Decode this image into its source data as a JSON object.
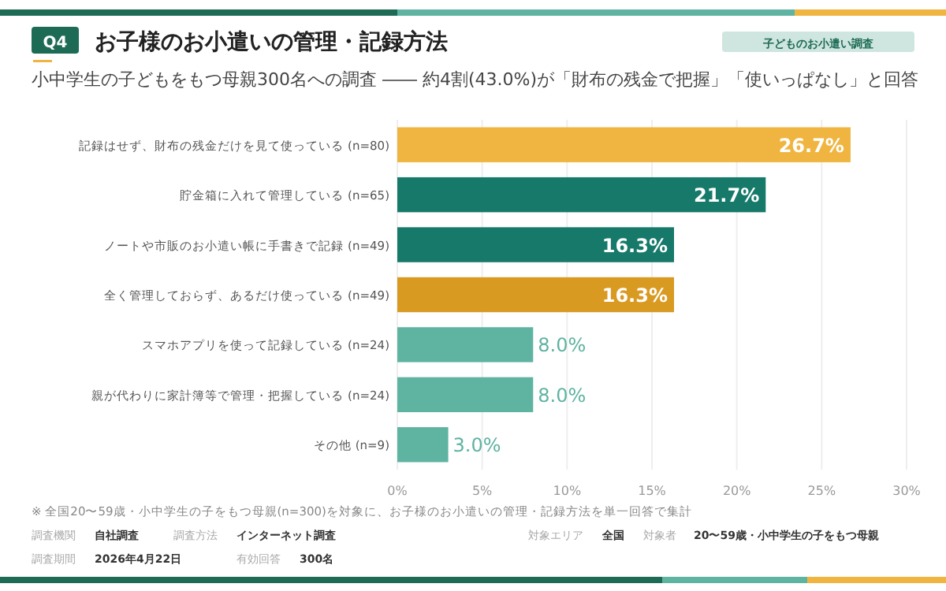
{
  "chart_data": {
    "type": "bar",
    "orientation": "horizontal",
    "title": "お子様のお小遣いの管理・記録方法",
    "subtitle": "小中学生の子どもをもつ母親300名への調査 ―― 約4割(43.0%)が「財布の残金で把握」「使いっぱなし」と回答",
    "categories": [
      "記録はせず、財布の残金だけを見て使っている (n=80)",
      "貯金箱に入れて管理している (n=65)",
      "ノートや市販のお小遣い帳に手書きで記録 (n=49)",
      "全く管理しておらず、あるだけ使っている (n=49)",
      "スマホアプリを使って記録している (n=24)",
      "親が代わりに家計簿等で管理・把握している (n=24)",
      "その他 (n=9)"
    ],
    "values": [
      26.7,
      21.7,
      16.3,
      16.3,
      8.0,
      8.0,
      3.0
    ],
    "colors": [
      "#f0b540",
      "#16796a",
      "#16796a",
      "#d99a22",
      "#5fb3a1",
      "#5fb3a1",
      "#5fb3a1"
    ],
    "value_labels": [
      "26.7%",
      "21.7%",
      "16.3%",
      "16.3%",
      "8.0%",
      "8.0%",
      "3.0%"
    ],
    "xlim": [
      0,
      30
    ],
    "xticks": [
      {
        "value": 0,
        "label": "0%"
      },
      {
        "value": 5,
        "label": "5%"
      },
      {
        "value": 10,
        "label": "10%"
      },
      {
        "value": 15,
        "label": "15%"
      },
      {
        "value": 20,
        "label": "20%"
      },
      {
        "value": 25,
        "label": "25%"
      },
      {
        "value": 30,
        "label": "30%"
      }
    ],
    "grid": "x",
    "annotations": [
      "Q4",
      "子どものお小遣い調査",
      "※ 全国20〜59歳・小中学生の子をもつ母親(n=300)を対象に、お子様のお小遣いの管理・記録方法を単一回答で集計",
      "調査機関",
      "自社調査",
      "調査方法",
      "インターネット調査",
      "対象エリア",
      "全国",
      "対象者",
      "20〜59歳・小中学生の子をもつ母親",
      "調査期間",
      "2026年4月22日",
      "有効回答",
      "300名"
    ]
  }
}
